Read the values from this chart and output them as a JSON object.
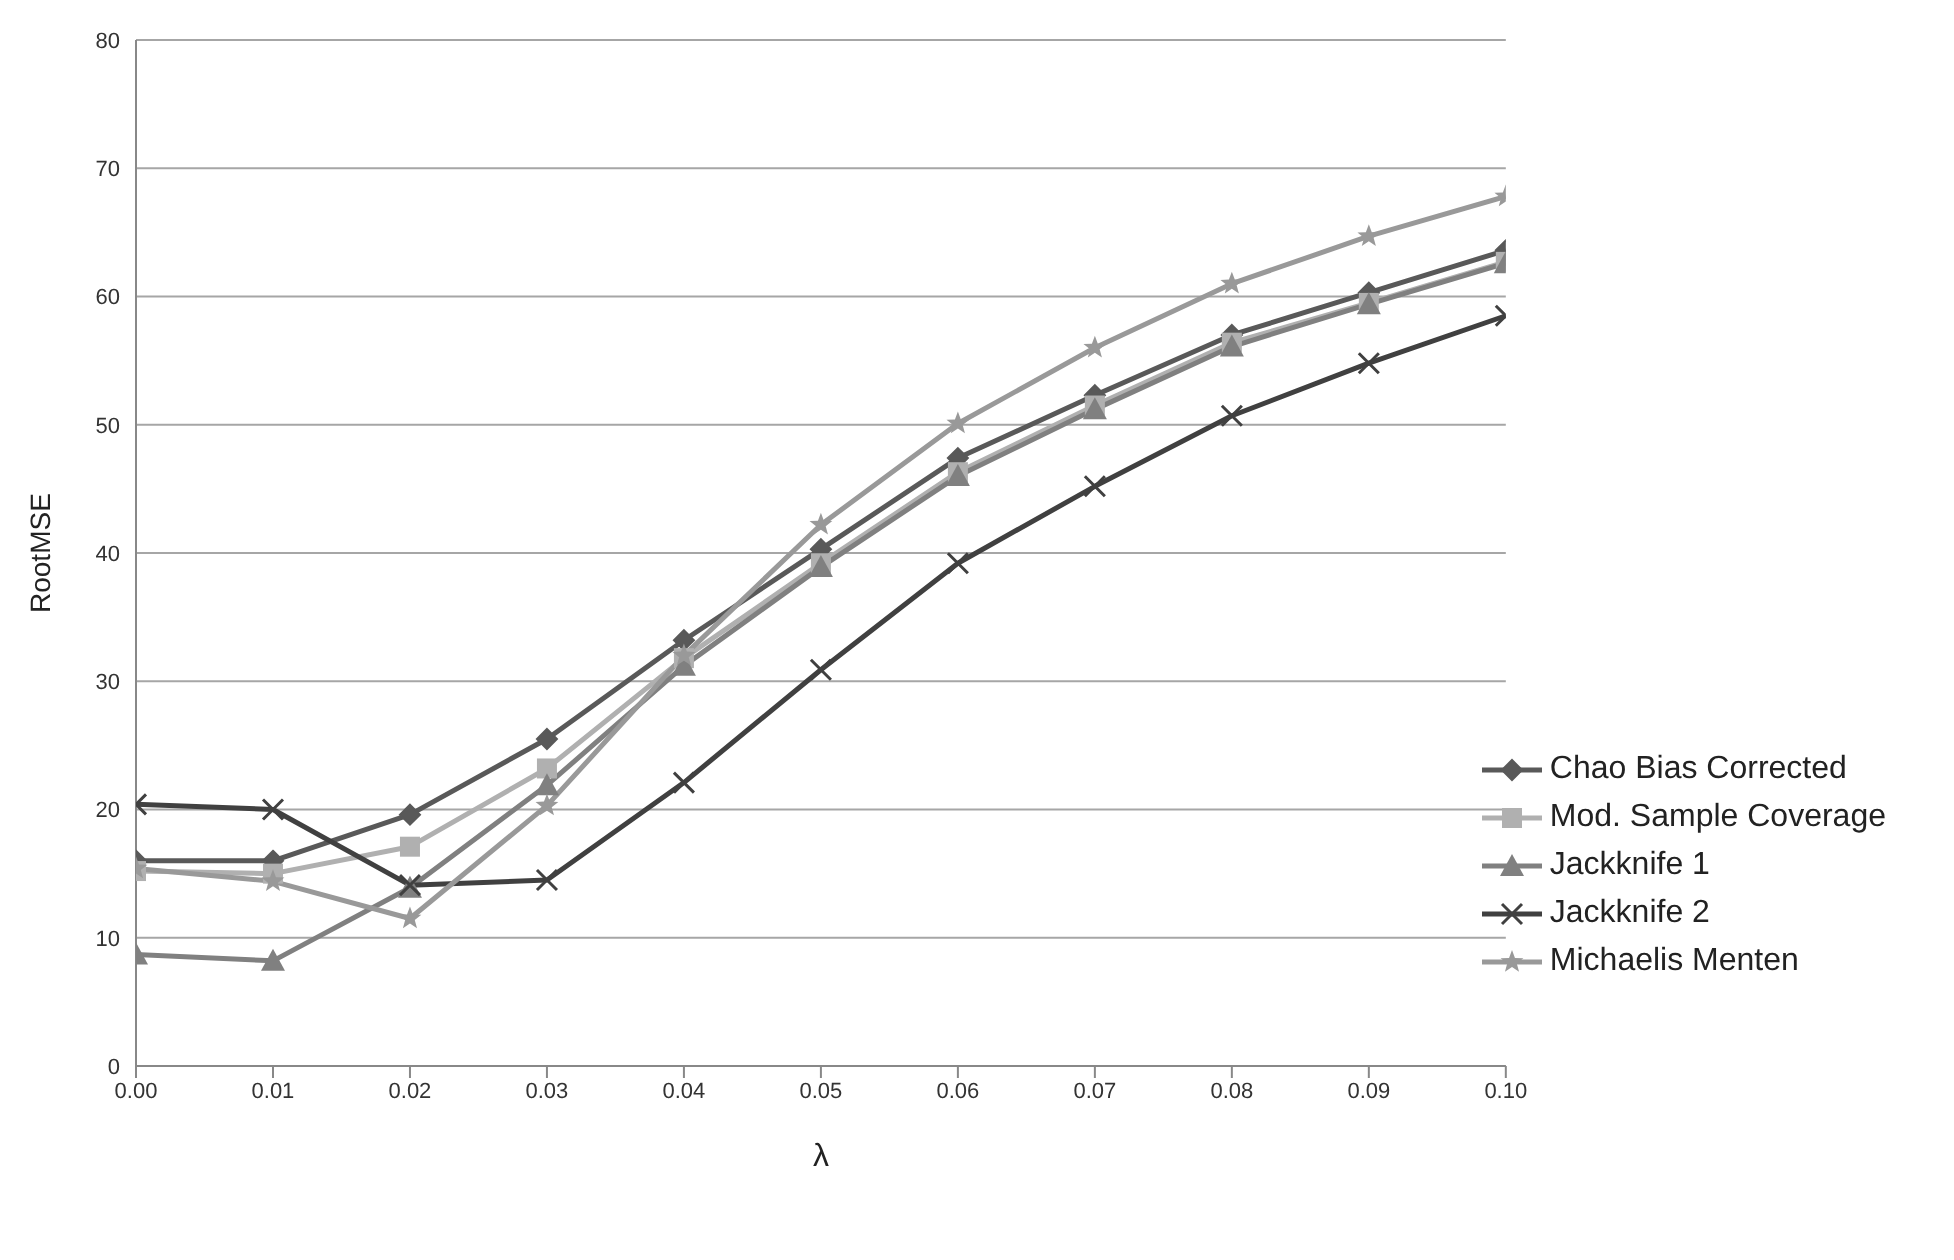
{
  "chart_data": {
    "type": "line",
    "xlabel": "λ",
    "ylabel": "RootMSE",
    "x": [
      0,
      0.01,
      0.02,
      0.03,
      0.04,
      0.05,
      0.06,
      0.07,
      0.08,
      0.09,
      0.1
    ],
    "xlim": [
      0,
      0.1
    ],
    "xticks": [
      {
        "value": 0,
        "label": "0.00"
      },
      {
        "value": 0.01,
        "label": "0.01"
      },
      {
        "value": 0.02,
        "label": "0.02"
      },
      {
        "value": 0.03,
        "label": "0.03"
      },
      {
        "value": 0.04,
        "label": "0.04"
      },
      {
        "value": 0.05,
        "label": "0.05"
      },
      {
        "value": 0.06,
        "label": "0.06"
      },
      {
        "value": 0.07,
        "label": "0.07"
      },
      {
        "value": 0.08,
        "label": "0.08"
      },
      {
        "value": 0.09,
        "label": "0.09"
      },
      {
        "value": 0.1,
        "label": "0.10"
      }
    ],
    "ylim": [
      0,
      80
    ],
    "yticks": [
      0,
      10,
      20,
      30,
      40,
      50,
      60,
      70,
      80
    ],
    "grid": "y",
    "legend": "right",
    "line_style": "solid",
    "series": [
      {
        "name": "Chao Bias Corrected",
        "color": "#595959",
        "marker": "diamond",
        "values": [
          16.0,
          16.0,
          19.6,
          25.5,
          33.2,
          40.3,
          47.4,
          52.3,
          57.0,
          60.3,
          63.6
        ]
      },
      {
        "name": "Mod. Sample Coverage",
        "color": "#b0b0b0",
        "marker": "square",
        "values": [
          15.2,
          15.0,
          17.1,
          23.2,
          31.8,
          39.2,
          46.3,
          51.5,
          56.4,
          59.5,
          62.7
        ]
      },
      {
        "name": "Jackknife 1",
        "color": "#808080",
        "marker": "triangle",
        "values": [
          8.7,
          8.2,
          13.9,
          21.9,
          31.2,
          38.9,
          46.0,
          51.2,
          56.1,
          59.4,
          62.6
        ]
      },
      {
        "name": "Jackknife 2",
        "color": "#404040",
        "marker": "cross",
        "values": [
          20.4,
          20.0,
          14.1,
          14.5,
          22.1,
          30.9,
          39.2,
          45.2,
          50.7,
          54.8,
          58.5
        ]
      },
      {
        "name": "Michaelis Menten",
        "color": "#999999",
        "marker": "star",
        "values": [
          15.4,
          14.4,
          11.5,
          20.3,
          32.0,
          42.2,
          50.1,
          56.0,
          61.0,
          64.7,
          67.8
        ]
      }
    ]
  }
}
